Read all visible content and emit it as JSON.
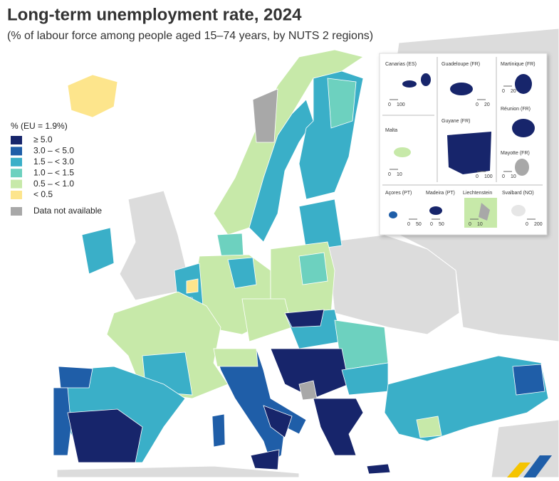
{
  "header": {
    "title": "Long-term unemployment rate, 2024",
    "subtitle": "(% of labour force among people aged 15–74 years, by NUTS 2 regions)"
  },
  "legend": {
    "title": "% (EU = 1.9%)",
    "items": [
      {
        "label": "≥ 5.0",
        "color": "#17256b"
      },
      {
        "label": "3.0 – < 5.0",
        "color": "#1f5ea8"
      },
      {
        "label": "1.5 – < 3.0",
        "color": "#3aafc8"
      },
      {
        "label": "1.0 – < 1.5",
        "color": "#6dd1bf"
      },
      {
        "label": "0.5 – < 1.0",
        "color": "#c7e9a9"
      },
      {
        "label": "< 0.5",
        "color": "#fde58c"
      }
    ],
    "not_available": {
      "label": "Data not available",
      "color": "#a8a8a8"
    }
  },
  "insets": [
    {
      "name": "Canarias (ES)",
      "scale": [
        "0",
        "100"
      ]
    },
    {
      "name": "Guadeloupe (FR)",
      "scale": [
        "0",
        "20"
      ]
    },
    {
      "name": "Martinique (FR)",
      "scale": [
        "0",
        "20"
      ]
    },
    {
      "name": "Malta",
      "scale": [
        "0",
        "10"
      ]
    },
    {
      "name": "Guyane (FR)",
      "scale": [
        "0",
        "100"
      ]
    },
    {
      "name": "Réunion (FR)",
      "scale": []
    },
    {
      "name": "Mayotte (FR)",
      "scale": [
        "0",
        "10"
      ]
    },
    {
      "name": "Açores (PT)",
      "scale": [
        "0",
        "50"
      ]
    },
    {
      "name": "Madeira (PT)",
      "scale": [
        "0",
        "50"
      ]
    },
    {
      "name": "Liechtenstein",
      "scale": [
        "0",
        "10"
      ]
    },
    {
      "name": "Svalbard (NO)",
      "scale": [
        "0",
        "200"
      ]
    }
  ]
}
